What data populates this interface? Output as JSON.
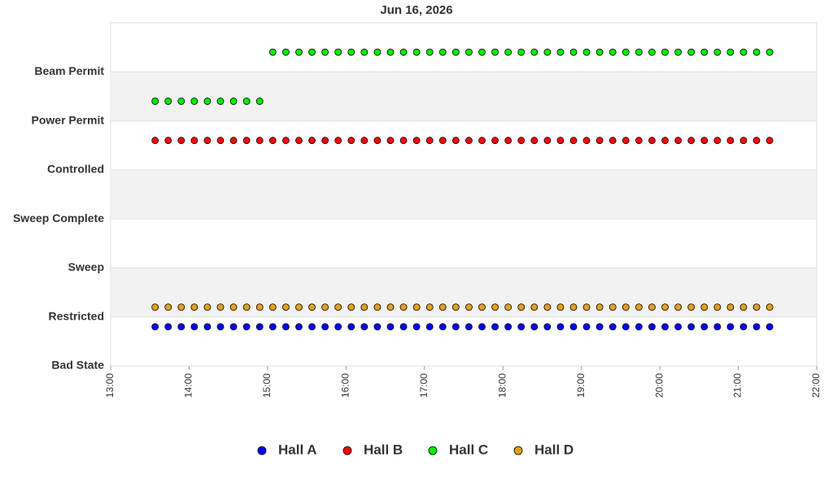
{
  "chart_data": {
    "type": "scatter",
    "title": "Jun 16, 2026",
    "x": [
      "13:34",
      "13:44",
      "13:54",
      "14:04",
      "14:14",
      "14:24",
      "14:34",
      "14:44",
      "14:54",
      "15:04",
      "15:14",
      "15:24",
      "15:34",
      "15:44",
      "15:54",
      "16:04",
      "16:14",
      "16:24",
      "16:34",
      "16:44",
      "16:54",
      "17:04",
      "17:14",
      "17:24",
      "17:34",
      "17:44",
      "17:54",
      "18:04",
      "18:14",
      "18:24",
      "18:34",
      "18:44",
      "18:54",
      "19:04",
      "19:14",
      "19:24",
      "19:34",
      "19:44",
      "19:54",
      "20:04",
      "20:14",
      "20:24",
      "20:34",
      "20:44",
      "20:54",
      "21:04",
      "21:14",
      "21:24"
    ],
    "series": [
      {
        "name": "Hall A",
        "color": "#0000ff",
        "values": [
          0.8,
          0.8,
          0.8,
          0.8,
          0.8,
          0.8,
          0.8,
          0.8,
          0.8,
          0.8,
          0.8,
          0.8,
          0.8,
          0.8,
          0.8,
          0.8,
          0.8,
          0.8,
          0.8,
          0.8,
          0.8,
          0.8,
          0.8,
          0.8,
          0.8,
          0.8,
          0.8,
          0.8,
          0.8,
          0.8,
          0.8,
          0.8,
          0.8,
          0.8,
          0.8,
          0.8,
          0.8,
          0.8,
          0.8,
          0.8,
          0.8,
          0.8,
          0.8,
          0.8,
          0.8,
          0.8,
          0.8,
          0.8
        ]
      },
      {
        "name": "Hall B",
        "color": "#ff0000",
        "values": [
          4.6,
          4.6,
          4.6,
          4.6,
          4.6,
          4.6,
          4.6,
          4.6,
          4.6,
          4.6,
          4.6,
          4.6,
          4.6,
          4.6,
          4.6,
          4.6,
          4.6,
          4.6,
          4.6,
          4.6,
          4.6,
          4.6,
          4.6,
          4.6,
          4.6,
          4.6,
          4.6,
          4.6,
          4.6,
          4.6,
          4.6,
          4.6,
          4.6,
          4.6,
          4.6,
          4.6,
          4.6,
          4.6,
          4.6,
          4.6,
          4.6,
          4.6,
          4.6,
          4.6,
          4.6,
          4.6,
          4.6,
          4.6
        ]
      },
      {
        "name": "Hall C",
        "color": "#00ee00",
        "values": [
          5.4,
          5.4,
          5.4,
          5.4,
          5.4,
          5.4,
          5.4,
          5.4,
          5.4,
          6.4,
          6.4,
          6.4,
          6.4,
          6.4,
          6.4,
          6.4,
          6.4,
          6.4,
          6.4,
          6.4,
          6.4,
          6.4,
          6.4,
          6.4,
          6.4,
          6.4,
          6.4,
          6.4,
          6.4,
          6.4,
          6.4,
          6.4,
          6.4,
          6.4,
          6.4,
          6.4,
          6.4,
          6.4,
          6.4,
          6.4,
          6.4,
          6.4,
          6.4,
          6.4,
          6.4,
          6.4,
          6.4,
          6.4
        ]
      },
      {
        "name": "Hall D",
        "color": "#e0a020",
        "values": [
          1.2,
          1.2,
          1.2,
          1.2,
          1.2,
          1.2,
          1.2,
          1.2,
          1.2,
          1.2,
          1.2,
          1.2,
          1.2,
          1.2,
          1.2,
          1.2,
          1.2,
          1.2,
          1.2,
          1.2,
          1.2,
          1.2,
          1.2,
          1.2,
          1.2,
          1.2,
          1.2,
          1.2,
          1.2,
          1.2,
          1.2,
          1.2,
          1.2,
          1.2,
          1.2,
          1.2,
          1.2,
          1.2,
          1.2,
          1.2,
          1.2,
          1.2,
          1.2,
          1.2,
          1.2,
          1.2,
          1.2,
          1.2
        ]
      }
    ],
    "xlim": [
      "13:00",
      "22:00"
    ],
    "xticks": [
      "13:00",
      "14:00",
      "15:00",
      "16:00",
      "17:00",
      "18:00",
      "19:00",
      "20:00",
      "21:00",
      "22:00"
    ],
    "ylim": [
      0,
      7
    ],
    "yticks": [
      {
        "value": 0,
        "label": "Bad State"
      },
      {
        "value": 1,
        "label": "Restricted"
      },
      {
        "value": 2,
        "label": "Sweep"
      },
      {
        "value": 3,
        "label": "Sweep Complete"
      },
      {
        "value": 4,
        "label": "Controlled"
      },
      {
        "value": 5,
        "label": "Power Permit"
      },
      {
        "value": 6,
        "label": "Beam Permit"
      }
    ],
    "grid": true,
    "legend": "bottom"
  }
}
